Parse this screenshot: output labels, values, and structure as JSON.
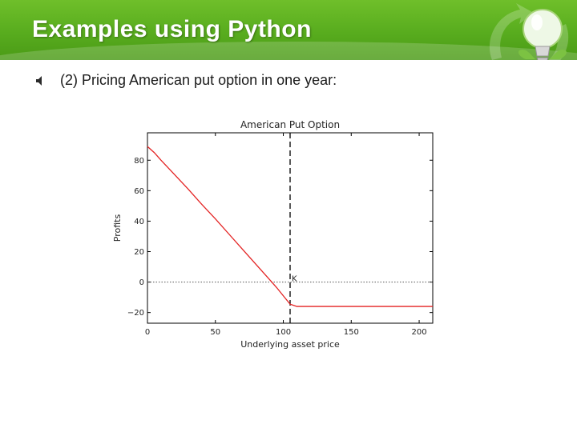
{
  "slide": {
    "title": "Examples using Python",
    "bullet": "(2) Pricing American put option in one year:"
  },
  "colors": {
    "header_green": "#58ac1e",
    "series_red": "#e32222"
  },
  "icons": {
    "bullet": "speaker-icon",
    "logo": "lightbulb-recycle-icon"
  },
  "chart_data": {
    "type": "line",
    "title": "American Put Option",
    "xlabel": "Underlying asset price",
    "ylabel": "Profits",
    "xlim": [
      0,
      210
    ],
    "ylim": [
      -27,
      98
    ],
    "xticks": [
      0,
      50,
      100,
      150,
      200
    ],
    "yticks": [
      -20,
      0,
      20,
      40,
      60,
      80
    ],
    "grid": false,
    "series": [
      {
        "style": "solid",
        "color": "#e32222",
        "points": [
          [
            0,
            89
          ],
          [
            5,
            85
          ],
          [
            10,
            80
          ],
          [
            20,
            70.5
          ],
          [
            30,
            61
          ],
          [
            40,
            51
          ],
          [
            50,
            41.5
          ],
          [
            60,
            31.5
          ],
          [
            70,
            21.5
          ],
          [
            80,
            11.5
          ],
          [
            90,
            1.5
          ],
          [
            95,
            -3.5
          ],
          [
            100,
            -9
          ],
          [
            105,
            -14.5
          ],
          [
            110,
            -16
          ],
          [
            150,
            -16
          ],
          [
            210,
            -16
          ]
        ]
      }
    ],
    "annotations": [
      {
        "type": "vline",
        "x": 105,
        "style": "dashed",
        "label": "K"
      },
      {
        "type": "hline",
        "y": 0,
        "style": "dotted"
      }
    ]
  }
}
